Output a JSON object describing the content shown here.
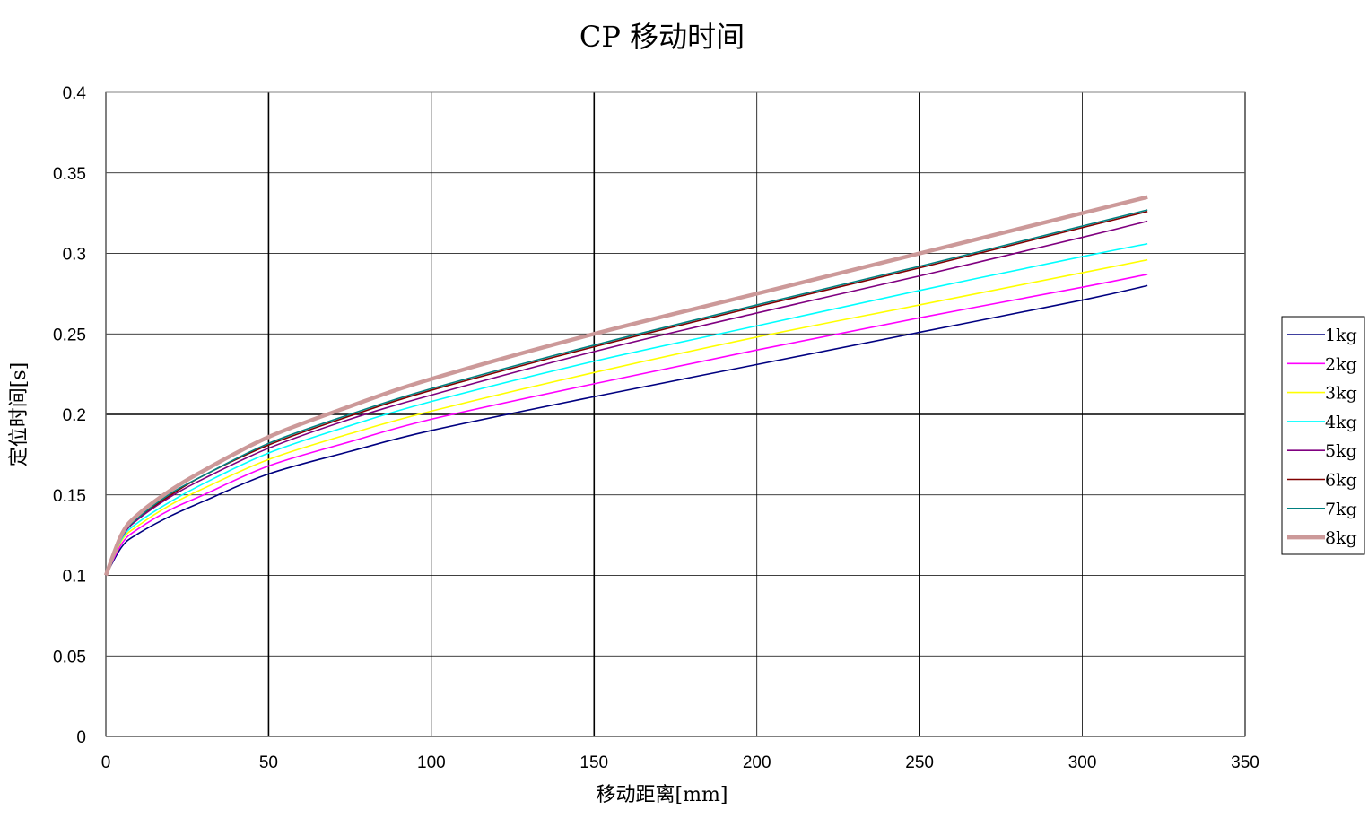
{
  "chart_data": {
    "type": "line",
    "title": "CP 移动时间",
    "xlabel": "移动距离[mm]",
    "ylabel": "定位时间[s]",
    "xlim": [
      0,
      350
    ],
    "ylim": [
      0,
      0.4
    ],
    "x_ticks": [
      "0",
      "50",
      "100",
      "150",
      "200",
      "250",
      "300",
      "350"
    ],
    "y_ticks": [
      "0",
      "0.05",
      "0.1",
      "0.15",
      "0.2",
      "0.25",
      "0.3",
      "0.35",
      "0.4"
    ],
    "grid": true,
    "legend_position": "right",
    "x": [
      0,
      5,
      10,
      20,
      30,
      50,
      75,
      100,
      150,
      200,
      250,
      300,
      320
    ],
    "series": [
      {
        "name": "1kg",
        "color": "#000080",
        "values": [
          0.1,
          0.118,
          0.126,
          0.137,
          0.146,
          0.163,
          0.177,
          0.19,
          0.211,
          0.231,
          0.251,
          0.271,
          0.28
        ]
      },
      {
        "name": "2kg",
        "color": "#ff00ff",
        "values": [
          0.1,
          0.12,
          0.129,
          0.141,
          0.15,
          0.168,
          0.183,
          0.197,
          0.219,
          0.24,
          0.26,
          0.279,
          0.287
        ]
      },
      {
        "name": "3kg",
        "color": "#ffff00",
        "values": [
          0.1,
          0.122,
          0.131,
          0.144,
          0.154,
          0.172,
          0.188,
          0.202,
          0.226,
          0.248,
          0.268,
          0.288,
          0.296
        ]
      },
      {
        "name": "4kg",
        "color": "#00ffff",
        "values": [
          0.1,
          0.123,
          0.133,
          0.146,
          0.157,
          0.176,
          0.193,
          0.208,
          0.233,
          0.255,
          0.277,
          0.298,
          0.306
        ]
      },
      {
        "name": "5kg",
        "color": "#800080",
        "values": [
          0.1,
          0.124,
          0.135,
          0.149,
          0.16,
          0.179,
          0.197,
          0.212,
          0.239,
          0.263,
          0.286,
          0.31,
          0.32
        ]
      },
      {
        "name": "6kg",
        "color": "#800000",
        "values": [
          0.1,
          0.125,
          0.136,
          0.15,
          0.162,
          0.181,
          0.199,
          0.215,
          0.242,
          0.267,
          0.291,
          0.316,
          0.326
        ]
      },
      {
        "name": "7kg",
        "color": "#008080",
        "values": [
          0.1,
          0.125,
          0.136,
          0.151,
          0.162,
          0.182,
          0.2,
          0.216,
          0.243,
          0.268,
          0.292,
          0.317,
          0.327
        ]
      },
      {
        "name": "8kg",
        "color": "#cc9999",
        "values": [
          0.1,
          0.126,
          0.138,
          0.153,
          0.165,
          0.186,
          0.205,
          0.222,
          0.25,
          0.275,
          0.3,
          0.325,
          0.335
        ]
      }
    ]
  }
}
